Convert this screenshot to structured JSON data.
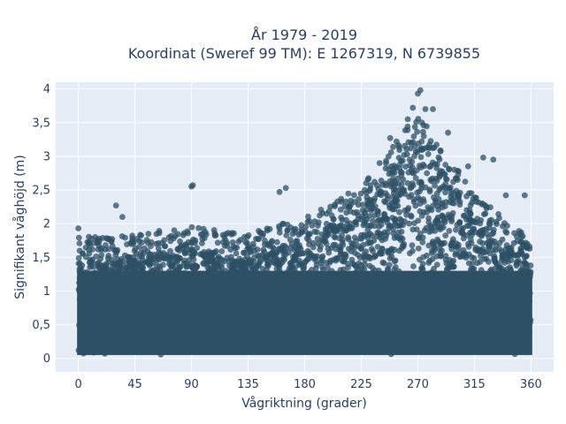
{
  "chart_data": {
    "type": "scatter",
    "title_line1": "År 1979 - 2019",
    "title_line2": "Koordinat (Sweref 99 TM): E 1267319, N 6739855",
    "xlabel": "Vågriktning (grader)",
    "ylabel": "Signifikant våghöjd (m)",
    "xlim": [
      -18,
      378
    ],
    "ylim": [
      -0.2,
      4.1
    ],
    "x_ticks": [
      0,
      45,
      90,
      135,
      180,
      225,
      270,
      315,
      360
    ],
    "x_tick_labels": [
      "0",
      "45",
      "90",
      "135",
      "180",
      "225",
      "270",
      "315",
      "360"
    ],
    "y_ticks": [
      0,
      0.5,
      1,
      1.5,
      2,
      2.5,
      3,
      3.5,
      4
    ],
    "y_tick_labels": [
      "0",
      "0,5",
      "1",
      "1,5",
      "2",
      "2,5",
      "3",
      "3,5",
      "4"
    ],
    "grid": true,
    "marker_color": "#2e5066",
    "plot_bg_color": "#e5ecf6",
    "envelope": {
      "x": [
        0,
        45,
        90,
        135,
        180,
        225,
        270,
        315,
        360
      ],
      "y_dense_top": [
        1.45,
        1.5,
        1.6,
        1.5,
        1.75,
        2.2,
        3.3,
        2.1,
        1.4
      ]
    },
    "outliers": {
      "x": [
        0,
        30,
        35,
        90,
        91,
        160,
        165,
        248,
        262,
        266,
        270,
        272,
        276,
        282,
        294,
        310,
        322,
        330,
        340,
        355
      ],
      "y": [
        1.93,
        2.27,
        2.1,
        2.55,
        2.57,
        2.47,
        2.53,
        3.27,
        3.55,
        3.72,
        3.93,
        3.98,
        3.7,
        3.7,
        3.35,
        2.85,
        2.98,
        2.95,
        2.42,
        2.42
      ]
    }
  }
}
